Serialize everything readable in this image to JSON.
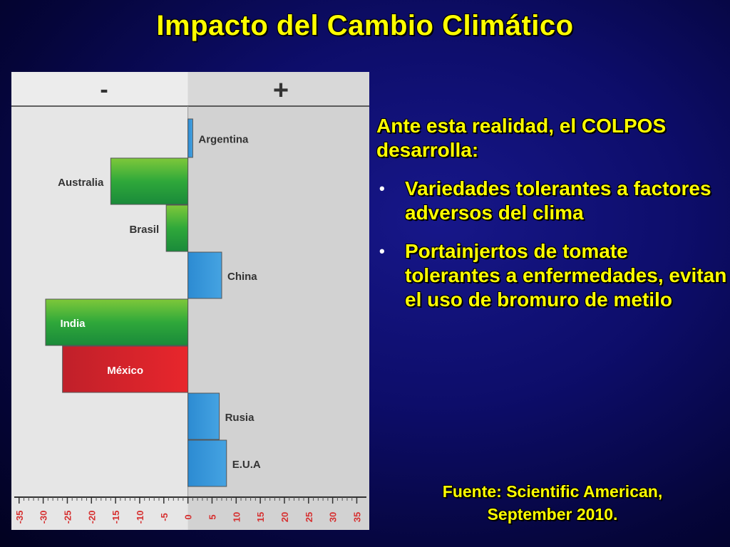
{
  "title": "Impacto del Cambio Climático",
  "chart_data": {
    "type": "bar",
    "orientation": "horizontal",
    "header_negative": "-",
    "header_positive": "+",
    "categories": [
      "Argentina",
      "Australia",
      "Brasil",
      "China",
      "India",
      "México",
      "Rusia",
      "E.U.A"
    ],
    "values": [
      1,
      -16,
      -4.5,
      7,
      -29.5,
      -26,
      6.5,
      8
    ],
    "colors": [
      "#3a93d6",
      "#2fa83a",
      "#2fa83a",
      "#3a93d6",
      "#2fa83a",
      "#e0232b",
      "#3a93d6",
      "#3a93d6"
    ],
    "xlim": [
      -36,
      37
    ],
    "ticks": [
      -35,
      -30,
      -25,
      -20,
      -15,
      -10,
      -5,
      0,
      5,
      10,
      15,
      20,
      25,
      30,
      35
    ],
    "tick_labels": [
      "-35",
      "-30",
      "-25",
      "-20",
      "-15",
      "-10",
      "-5",
      "0",
      "5",
      "10",
      "15",
      "20",
      "25",
      "30",
      "35"
    ]
  },
  "intro": "Ante esta realidad, el COLPOS desarrolla:",
  "bullet_char": "•",
  "bullets": [
    "Variedades tolerantes a factores adversos del clima",
    "Portainjertos de tomate tolerantes a enfermedades, evitan el uso de bromuro de metilo"
  ],
  "source": {
    "line1": "Fuente: Scientific American,",
    "line2": "September 2010."
  }
}
